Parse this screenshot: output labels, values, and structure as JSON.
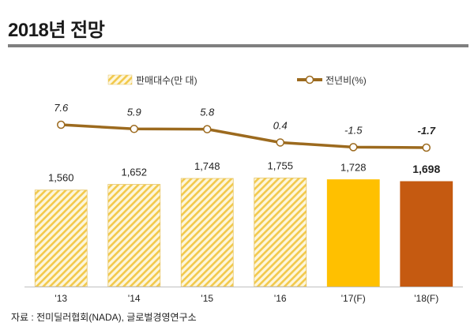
{
  "page": {
    "title": "2018년 전망",
    "source": "자료 : 전미딜러협회(NADA), 글로벌경영연구소"
  },
  "colors": {
    "hatch_fg": "#f2c94c",
    "hatch_bg": "#fdf6dc",
    "bar_2017": "#ffc000",
    "bar_2018": "#c55a11",
    "line": "#9c6a1e",
    "marker_fill": "#ffffff",
    "text": "#333333"
  },
  "chart_data": {
    "type": "bar+line",
    "categories": [
      "'13",
      "'14",
      "'15",
      "'16",
      "'17(F)",
      "'18(F)"
    ],
    "series": [
      {
        "name": "판매대수(만 대)",
        "type": "bar",
        "values": [
          1560,
          1652,
          1748,
          1755,
          1728,
          1698
        ],
        "labels": [
          "1,560",
          "1,652",
          "1,748",
          "1,755",
          "1,728",
          "1,698"
        ]
      },
      {
        "name": "전년비(%)",
        "type": "line",
        "values": [
          7.6,
          5.9,
          5.8,
          0.4,
          -1.5,
          -1.7
        ],
        "labels": [
          "7.6",
          "5.9",
          "5.8",
          "0.4",
          "-1.5",
          "-1.7"
        ]
      }
    ],
    "bar_ylim": [
      0,
      1950
    ],
    "line_ylim": [
      -2.0,
      8.2
    ],
    "legend_position": "top",
    "grid": false
  }
}
